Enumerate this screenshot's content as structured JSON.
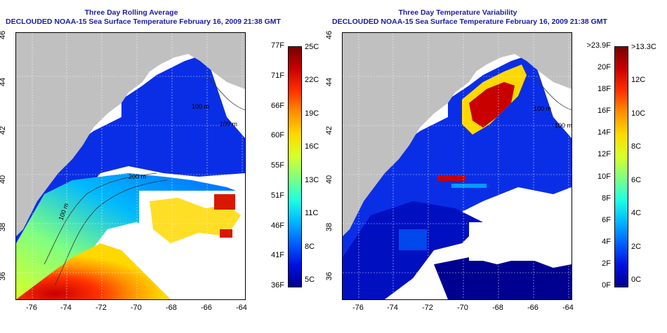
{
  "panels": [
    {
      "title": "Three Day Rolling Average",
      "subtitle": "DECLOUDED NOAA-15 Sea Surface Temperature February 16, 2009 21:38 GMT",
      "isobath_labels": [
        "100 m",
        "200 m",
        "100 m",
        "100 m"
      ],
      "colorbar": {
        "left_labels": [
          "77F",
          "71F",
          "66F",
          "60F",
          "55F",
          "51F",
          "46F",
          "41F",
          "36F"
        ],
        "right_labels": [
          "25C",
          "22C",
          "19C",
          "16C",
          "13C",
          "11C",
          "8C",
          "5C"
        ],
        "colors": [
          "#7a0000",
          "#c80000",
          "#ff3000",
          "#ff9000",
          "#ffd800",
          "#d8ff28",
          "#80ff80",
          "#20ffe0",
          "#00b8ff",
          "#0060ff",
          "#0010e0",
          "#000090"
        ]
      }
    },
    {
      "title": "Three Day Temperature Variability",
      "subtitle": "DECLOUDED NOAA-15 Sea Surface Temperature February 16, 2009 21:38 GMT",
      "isobath_labels": [
        "100 m",
        "100 m"
      ],
      "colorbar": {
        "left_labels": [
          ">23.9F",
          "20F",
          "18F",
          "16F",
          "14F",
          "12F",
          "10F",
          "8F",
          "6F",
          "4F",
          "2F",
          "0F"
        ],
        "right_labels": [
          ">13.3C",
          "12C",
          "10C",
          "8C",
          "6C",
          "4C",
          "2C",
          "0C"
        ],
        "colors": [
          "#7a0000",
          "#c80000",
          "#ff3000",
          "#ff9000",
          "#ffd800",
          "#d8ff28",
          "#80ff80",
          "#20ffe0",
          "#00b8ff",
          "#0060ff",
          "#0010e0",
          "#000090"
        ]
      }
    }
  ],
  "axes": {
    "x_ticks": [
      "-76",
      "-74",
      "-72",
      "-70",
      "-68",
      "-66",
      "-64"
    ],
    "y_ticks": [
      "46",
      "44",
      "42",
      "40",
      "38",
      "36"
    ]
  },
  "colors": {
    "land": "#c0c0c0",
    "cloud": "#ffffff",
    "shelf_water_cold": "#1a3cf0",
    "warm_water": "#d81800",
    "title_text": "#1a1aa6"
  }
}
